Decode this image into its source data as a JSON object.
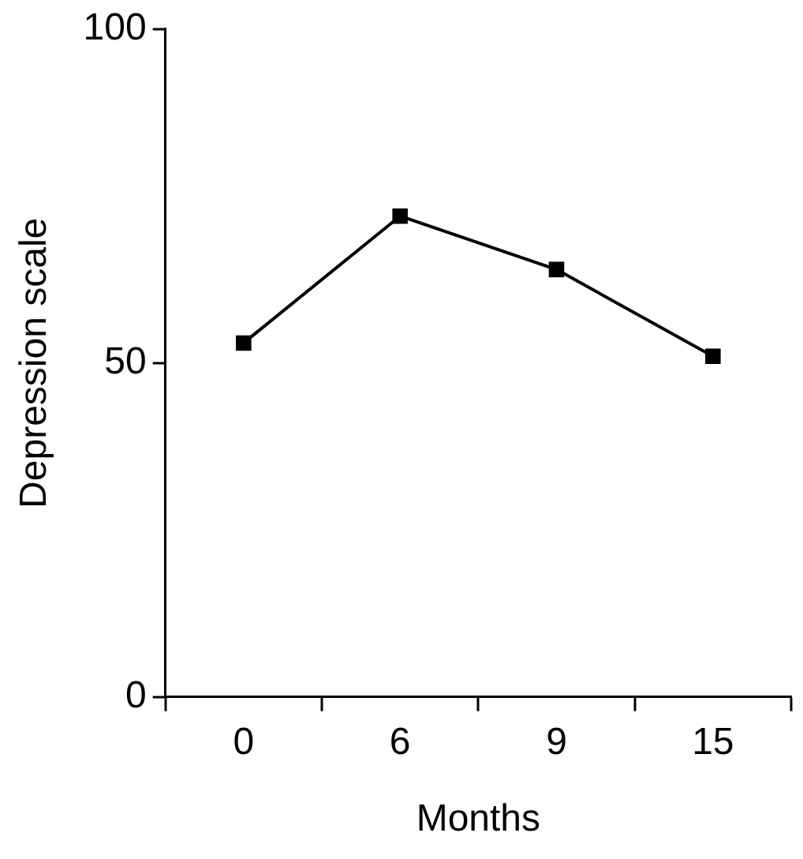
{
  "chart_data": {
    "type": "line",
    "xlabel": "Months",
    "ylabel": "Depression scale",
    "categories": [
      "0",
      "6",
      "9",
      "15"
    ],
    "series": [
      {
        "color": "#000000",
        "values": [
          53,
          72,
          64,
          51
        ]
      }
    ],
    "ylim": [
      0,
      100
    ],
    "yticks": [
      0,
      50,
      100
    ],
    "grid": false,
    "legend": false,
    "marker": "square",
    "line_style": "solid"
  }
}
